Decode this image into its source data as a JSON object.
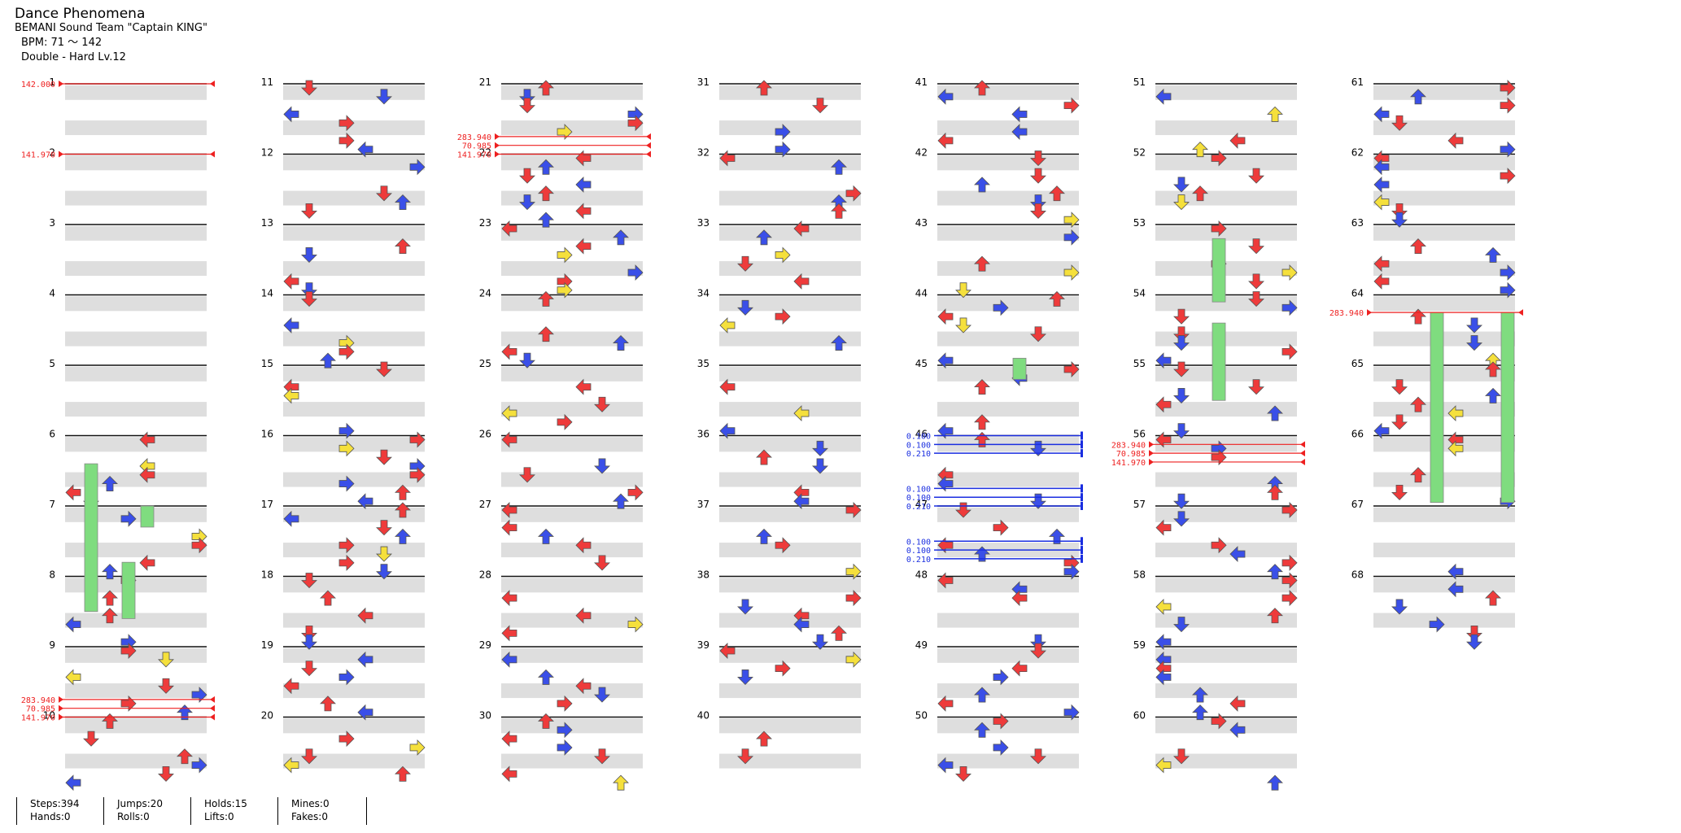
{
  "header": {
    "title": "Dance Phenomena",
    "artist": "BEMANI Sound Team \"Captain KING\"",
    "bpm": "BPM: 71 ～ 142",
    "difficulty": "Double - Hard Lv.12"
  },
  "measure_numbers": [
    "1",
    "2",
    "3",
    "4",
    "5",
    "6",
    "7",
    "8",
    "9",
    "10",
    "11",
    "12",
    "13",
    "14",
    "15",
    "16",
    "17",
    "18",
    "19",
    "20",
    "21",
    "22",
    "23",
    "24",
    "25",
    "26",
    "27",
    "28",
    "29",
    "30",
    "31",
    "32",
    "33",
    "34",
    "35",
    "36",
    "37",
    "38",
    "39",
    "40",
    "41",
    "42",
    "43",
    "44",
    "45",
    "46",
    "47",
    "48",
    "49",
    "50",
    "51",
    "52",
    "53",
    "54",
    "55",
    "56",
    "57",
    "58",
    "59",
    "60",
    "61",
    "62",
    "63",
    "64",
    "65",
    "66",
    "67",
    "68"
  ],
  "bpm_changes": [
    {
      "m": 1,
      "label": "142.000"
    },
    {
      "m": 2,
      "label": "141.970"
    },
    {
      "m": 9.75,
      "label": "283.940"
    },
    {
      "m": 9.875,
      "label": "70.985"
    },
    {
      "m": 10,
      "label": "141.970"
    },
    {
      "m": 21.75,
      "label": "283.940"
    },
    {
      "m": 21.875,
      "label": "70.985"
    },
    {
      "m": 22,
      "label": "141.970"
    },
    {
      "m": 56.125,
      "label": "283.940"
    },
    {
      "m": 56.25,
      "label": "70.985"
    },
    {
      "m": 56.375,
      "label": "141.970"
    },
    {
      "m": 64.25,
      "label": "283.940"
    }
  ],
  "stops": [
    {
      "m": 46,
      "label": "0.100"
    },
    {
      "m": 46.125,
      "label": "0.100"
    },
    {
      "m": 46.25,
      "label": "0.210"
    },
    {
      "m": 46.75,
      "label": "0.100"
    },
    {
      "m": 46.875,
      "label": "0.100"
    },
    {
      "m": 47,
      "label": "0.210"
    },
    {
      "m": 47.5,
      "label": "0.100"
    },
    {
      "m": 47.625,
      "label": "0.100"
    },
    {
      "m": 47.75,
      "label": "0.210"
    }
  ],
  "colors": {
    "red_arrow": "#ee3b3b",
    "blue_arrow": "#3a4fe8",
    "yellow_arrow": "#f5e03c",
    "hold": "#7fdc7f",
    "bpm_line": "#ee2020",
    "stop_line": "#1a2ee0",
    "stripe": "#dedede"
  },
  "stats": {
    "steps": "Steps:394",
    "hands": "Hands:0",
    "jumps": "Jumps:20",
    "rolls": "Rolls:0",
    "holds": "Holds:15",
    "lifts": "Lifts:0",
    "mines": "Mines:0",
    "fakes": "Fakes:0"
  },
  "arrow_icon": "arrow-icon",
  "hold_icon": "freeze-arrow-icon"
}
